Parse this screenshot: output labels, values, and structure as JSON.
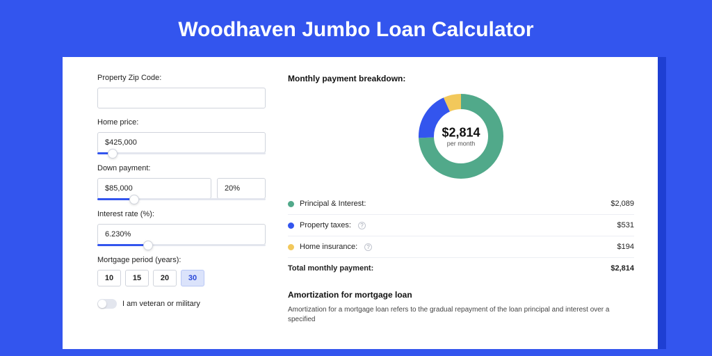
{
  "colors": {
    "page_bg": "#3355ee",
    "card_shadow": "#1e3fd3",
    "card_bg": "#ffffff",
    "input_border": "#d0d4dc",
    "slider_track": "#e3e6ee",
    "slider_fill": "#3355ee",
    "period_active_bg": "#dbe3fb",
    "period_active_border": "#b9c7f5",
    "period_active_text": "#2a48d8",
    "divider": "#eceef3"
  },
  "title": "Woodhaven Jumbo Loan Calculator",
  "form": {
    "zip": {
      "label": "Property Zip Code:",
      "value": ""
    },
    "home_price": {
      "label": "Home price:",
      "value": "$425,000",
      "slider_pct": 9
    },
    "down_payment": {
      "label": "Down payment:",
      "amount": "$85,000",
      "pct": "20%",
      "slider_pct": 22
    },
    "interest": {
      "label": "Interest rate (%):",
      "value": "6.230%",
      "slider_pct": 30
    },
    "period": {
      "label": "Mortgage period (years):",
      "options": [
        "10",
        "15",
        "20",
        "30"
      ],
      "active_index": 3
    },
    "veteran": {
      "label": "I am veteran or military",
      "on": false
    }
  },
  "breakdown": {
    "title": "Monthly payment breakdown:",
    "center_amount": "$2,814",
    "center_sub": "per month",
    "donut": {
      "segments": [
        {
          "value": 2089,
          "color": "#51a98a"
        },
        {
          "value": 531,
          "color": "#3355ee"
        },
        {
          "value": 194,
          "color": "#f2c85b"
        }
      ],
      "stroke_width": 22,
      "radius": 50
    },
    "items": [
      {
        "label": "Principal & Interest:",
        "value": "$2,089",
        "color": "#51a98a",
        "info": false
      },
      {
        "label": "Property taxes:",
        "value": "$531",
        "color": "#3355ee",
        "info": true
      },
      {
        "label": "Home insurance:",
        "value": "$194",
        "color": "#f2c85b",
        "info": true
      }
    ],
    "total": {
      "label": "Total monthly payment:",
      "value": "$2,814"
    }
  },
  "amort": {
    "title": "Amortization for mortgage loan",
    "text": "Amortization for a mortgage loan refers to the gradual repayment of the loan principal and interest over a specified"
  }
}
